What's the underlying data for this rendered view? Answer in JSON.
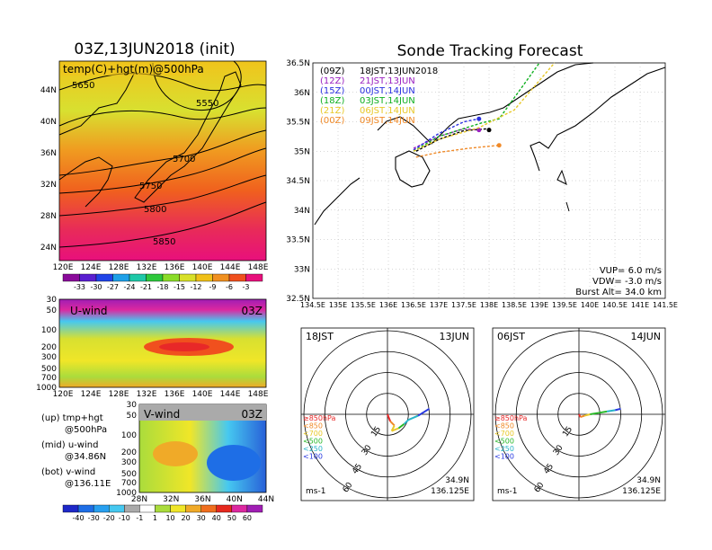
{
  "left_panel": {
    "title": "03Z,13JUN2018 (init)",
    "overlay_label": "temp(C)+hgt(m)@500hPa",
    "lat_ticks": [
      "44N",
      "40N",
      "36N",
      "32N",
      "28N",
      "24N"
    ],
    "lon_ticks": [
      "120E",
      "124E",
      "128E",
      "132E",
      "136E",
      "140E",
      "144E",
      "148E"
    ],
    "contour_labels": [
      "5650",
      "5550",
      "5700",
      "5750",
      "5800",
      "5850"
    ],
    "colorbar_ticks": [
      "-33",
      "-30",
      "-27",
      "-24",
      "-21",
      "-18",
      "-15",
      "-12",
      "-9",
      "-6",
      "-3"
    ],
    "colorbar_colors": [
      "#8a0a9a",
      "#5a1fd0",
      "#2044e8",
      "#1ea0e8",
      "#1ec8a8",
      "#2ec83c",
      "#8adc28",
      "#d8e028",
      "#f0c018",
      "#f09020",
      "#f0501e",
      "#e8107c"
    ]
  },
  "u_panel": {
    "label": "U-wind",
    "time": "03Z",
    "y_ticks": [
      "30",
      "50",
      "100",
      "200",
      "300",
      "500",
      "700",
      "1000"
    ],
    "x_ticks": [
      "120E",
      "124E",
      "128E",
      "132E",
      "136E",
      "140E",
      "144E",
      "148E"
    ]
  },
  "v_panel": {
    "label": "V-wind",
    "time": "03Z",
    "y_ticks": [
      "30",
      "50",
      "100",
      "200",
      "300",
      "500",
      "700",
      "1000"
    ],
    "x_ticks": [
      "28N",
      "32N",
      "36N",
      "40N",
      "44N"
    ]
  },
  "legend_notes": [
    {
      "line1": "(up)  tmp+hgt",
      "line2": "@500hPa"
    },
    {
      "line1": "(mid) u-wind",
      "line2": "@34.86N"
    },
    {
      "line1": "(bot) v-wind",
      "line2": "@136.11E"
    }
  ],
  "wind_colorbar": {
    "ticks": [
      "-40",
      "-30",
      "-20",
      "-10",
      "-1",
      "1",
      "10",
      "20",
      "30",
      "40",
      "50",
      "60"
    ],
    "colors": [
      "#1e28c8",
      "#1e6ee6",
      "#28a0f0",
      "#46c8f0",
      "#aaaaaa",
      "#ffffff",
      "#aadc3c",
      "#f0e628",
      "#f0aa28",
      "#f06e1e",
      "#e6281e",
      "#dc28a0",
      "#a01eb4"
    ]
  },
  "map_panel": {
    "title": "Sonde Tracking Forecast",
    "lat_ticks": [
      "36.5N",
      "36N",
      "35.5N",
      "35N",
      "34.5N",
      "34N",
      "33.5N",
      "33N",
      "32.5N"
    ],
    "lon_ticks": [
      "134.5E",
      "135E",
      "135.5E",
      "136E",
      "136.5E",
      "137E",
      "137.5E",
      "138E",
      "138.5E",
      "139E",
      "139.5E",
      "140E",
      "140.5E",
      "141E",
      "141.5E"
    ],
    "launches": [
      {
        "code": "(09Z)",
        "label": "18JST,13JUN2018",
        "color": "#000000"
      },
      {
        "code": "(12Z)",
        "label": "21JST,13JUN",
        "color": "#9a20c0"
      },
      {
        "code": "(15Z)",
        "label": "00JST,14JUN",
        "color": "#2a30e0"
      },
      {
        "code": "(18Z)",
        "label": "03JST,14JUN",
        "color": "#10b020"
      },
      {
        "code": "(21Z)",
        "label": "06JST,14JUN",
        "color": "#e8c828"
      },
      {
        "code": "(00Z)",
        "label": "09JST,14JUN",
        "color": "#f08a28"
      }
    ],
    "params": [
      "VUP=  6.0 m/s",
      "VDW= -3.0 m/s",
      "Burst Alt= 34.0 km"
    ]
  },
  "chart_data": [
    {
      "type": "line",
      "title": "Sonde Tracking Forecast",
      "xlabel": "",
      "ylabel": "",
      "xlim": [
        134.5,
        141.5
      ],
      "ylim": [
        32.5,
        36.5
      ],
      "grid": true,
      "series": [
        {
          "name": "(09Z) 18JST,13JUN2018",
          "x": [
            136.55,
            137.0,
            137.5,
            137.95,
            138.0
          ],
          "y": [
            35.0,
            35.2,
            35.35,
            35.38,
            35.36
          ]
        },
        {
          "name": "(12Z) 21JST,13JUN",
          "x": [
            136.5,
            137.0,
            137.5,
            137.8
          ],
          "y": [
            35.05,
            35.25,
            35.38,
            35.36
          ]
        },
        {
          "name": "(15Z) 00JST,14JUN",
          "x": [
            136.5,
            137.0,
            137.5,
            137.8
          ],
          "y": [
            35.02,
            35.3,
            35.5,
            35.55
          ]
        },
        {
          "name": "(18Z) 03JST,14JUN",
          "x": [
            136.5,
            137.0,
            137.85,
            138.2,
            139.0
          ],
          "y": [
            35.0,
            35.25,
            35.48,
            35.55,
            36.5
          ]
        },
        {
          "name": "(21Z) 06JST,14JUN",
          "x": [
            136.5,
            137.0,
            137.8,
            138.5,
            139.3
          ],
          "y": [
            35.0,
            35.2,
            35.4,
            35.7,
            36.5
          ]
        },
        {
          "name": "(00Z) 09JST,14JUN",
          "x": [
            136.55,
            137.0,
            137.6,
            138.2
          ],
          "y": [
            34.9,
            34.98,
            35.05,
            35.1
          ]
        }
      ]
    },
    {
      "type": "line",
      "title": "18JST 13JUN",
      "annotations": [
        "≥850hPa",
        "<850",
        "<700",
        "<500",
        "<250",
        "<100",
        "34.9N",
        "136.125E",
        "ms-1"
      ],
      "ring_labels": [
        "15",
        "30",
        "45",
        "60"
      ],
      "series": [
        {
          "name": "hodograph",
          "u": [
            0,
            2,
            5,
            3,
            8,
            12,
            15,
            22,
            30
          ],
          "v": [
            0,
            -5,
            -8,
            -12,
            -10,
            -7,
            -4,
            -1,
            4
          ]
        }
      ]
    },
    {
      "type": "line",
      "title": "06JST 14JUN",
      "annotations": [
        "≥850hPa",
        "<850",
        "<700",
        "<500",
        "<250",
        "<100",
        "34.9N",
        "136.125E",
        "ms-1"
      ],
      "ring_labels": [
        "15",
        "30",
        "45",
        "60"
      ],
      "series": [
        {
          "name": "hodograph",
          "u": [
            0,
            1,
            4,
            8,
            14,
            20,
            26,
            30
          ],
          "v": [
            0,
            -2,
            -1,
            0,
            1,
            2,
            3,
            4
          ]
        }
      ]
    }
  ],
  "hodo_left": {
    "time": "18JST",
    "date": "13JUN",
    "lat": "34.9N",
    "lon": "136.125E",
    "unit": "ms-1"
  },
  "hodo_right": {
    "time": "06JST",
    "date": "14JUN",
    "lat": "34.9N",
    "lon": "136.125E",
    "unit": "ms-1"
  },
  "hodo_legend": [
    {
      "text": "≥850hPa",
      "color": "#e82828"
    },
    {
      "text": "<850",
      "color": "#f08a28"
    },
    {
      "text": "<700",
      "color": "#e8c828"
    },
    {
      "text": "<500",
      "color": "#28b828"
    },
    {
      "text": "<250",
      "color": "#28b4c8"
    },
    {
      "text": "<100",
      "color": "#2838e0"
    }
  ]
}
